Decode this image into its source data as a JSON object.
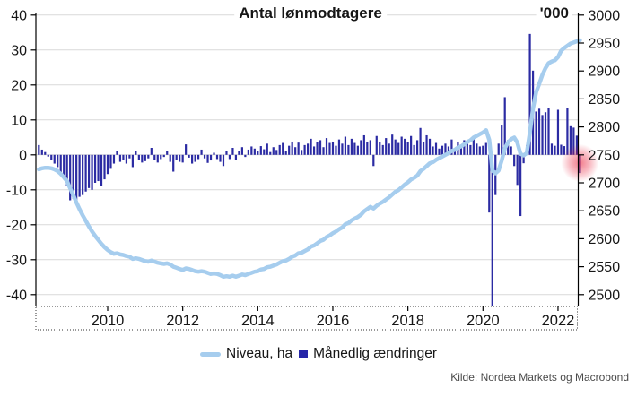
{
  "header": {
    "title": "Antal lønmodtagere",
    "unit_label": "'000"
  },
  "legend": {
    "items": [
      {
        "label": "Niveau, ha",
        "marker": "line-swatch",
        "color": "#a6cdee"
      },
      {
        "label": "Månedlig ændringer",
        "marker": "square-swatch",
        "color": "#2525a8"
      }
    ]
  },
  "source": {
    "label": "Kilde: Nordea Markets og Macrobond"
  },
  "colors": {
    "bar": "#2b2ba3",
    "line": "#a6cdee",
    "grid": "#d9d9d9",
    "axis": "#000000",
    "tick_text": "#161616",
    "highlight": "#e8112d",
    "background": "#ffffff"
  },
  "chart_data": {
    "type": "combo-bar-line",
    "title": "Antal lønmodtagere",
    "start_month": "2008-03",
    "months_per_point": 1,
    "left_axis": {
      "ticks": [
        40,
        30,
        20,
        10,
        0,
        -10,
        -20,
        -30,
        -40
      ],
      "range": [
        -40,
        40
      ],
      "grid": true
    },
    "right_axis": {
      "label": "'000",
      "ticks": [
        3000,
        2950,
        2900,
        2850,
        2800,
        2750,
        2700,
        2650,
        2600,
        2550,
        2500
      ],
      "range": [
        2500,
        3000
      ],
      "grid": false
    },
    "x_axis": {
      "tick_labels": [
        "2010",
        "2012",
        "2014",
        "2016",
        "2018",
        "2020",
        "2022"
      ],
      "tick_years": [
        2010,
        2012,
        2014,
        2016,
        2018,
        2020,
        2022
      ]
    },
    "series": [
      {
        "name": "Månedlig ændringer",
        "type": "bar",
        "axis": "left",
        "color": "#2b2ba3",
        "values": [
          2.8,
          1.5,
          0.8,
          -0.5,
          -1.5,
          -2.5,
          -3.5,
          -5,
          -7,
          -9,
          -13,
          -12.5,
          -13.5,
          -12,
          -11.5,
          -10.5,
          -9.5,
          -10,
          -8,
          -7.5,
          -9,
          -7,
          -5.5,
          -4,
          -2.5,
          1.2,
          -2,
          -1.5,
          -2.5,
          -1,
          -3.5,
          1,
          -1.5,
          -2.2,
          -1.8,
          -1,
          2,
          -1.5,
          -2.2,
          -1.2,
          -0.6,
          1.2,
          -2,
          -4.8,
          -1.5,
          -2,
          -2.2,
          3,
          -0.8,
          -2.5,
          -2,
          -1.2,
          1.5,
          -1,
          -2.3,
          -1.6,
          0.6,
          -1.2,
          -2,
          -3.2,
          1,
          -1.2,
          2,
          -1.5,
          1.2,
          2.2,
          -0.6,
          1.5,
          2.4,
          1.8,
          1.2,
          2.5,
          1.6,
          3.2,
          0.8,
          2.2,
          1.4,
          2.8,
          3.4,
          1.2,
          2.6,
          3.8,
          2.2,
          3.5,
          1.4,
          2.8,
          3.2,
          4.6,
          2.4,
          3.6,
          4.2,
          2.2,
          4.8,
          3.4,
          3.8,
          2.6,
          4.4,
          3.2,
          5.2,
          2.8,
          4.6,
          3.4,
          2.6,
          4.2,
          5.6,
          3.8,
          4.2,
          -3.2,
          5.4,
          3.6,
          2.8,
          4.8,
          3.2,
          5.8,
          4.4,
          3.4,
          5.2,
          4.6,
          3.6,
          5.4,
          2.8,
          4.2,
          7.7,
          3.8,
          5.6,
          4.6,
          2.4,
          3.4,
          1.8,
          2.6,
          3.2,
          2.4,
          4.4,
          1.6,
          3.8,
          2.2,
          4.2,
          3.6,
          2.8,
          4.6,
          3.2,
          2.4,
          2.6,
          3.4,
          -16.5,
          -55,
          -11.5,
          3.2,
          8.4,
          16.5,
          4.2,
          2.4,
          -3.2,
          -8.6,
          -17.5,
          -2.4,
          2.8,
          34.6,
          24.1,
          12.4,
          13.2,
          11.4,
          12.2,
          13.4,
          3.2,
          2.6,
          12.9,
          2.9,
          2.5,
          13.4,
          8.2,
          7.8,
          5.5,
          -5.2
        ]
      },
      {
        "name": "Niveau, ha",
        "type": "line",
        "axis": "right",
        "color": "#a6cdee",
        "values": [
          2724,
          2726,
          2727,
          2727,
          2726,
          2724,
          2721,
          2716,
          2710,
          2703,
          2690,
          2678,
          2665,
          2653,
          2642,
          2632,
          2622,
          2613,
          2605,
          2598,
          2591,
          2585,
          2580,
          2576,
          2573,
          2574,
          2572,
          2571,
          2569,
          2568,
          2564,
          2565,
          2564,
          2562,
          2560,
          2559,
          2561,
          2559,
          2557,
          2556,
          2555,
          2556,
          2554,
          2550,
          2548,
          2546,
          2544,
          2547,
          2546,
          2544,
          2542,
          2541,
          2542,
          2541,
          2539,
          2537,
          2538,
          2537,
          2535,
          2532,
          2533,
          2532,
          2534,
          2532,
          2534,
          2536,
          2535,
          2537,
          2539,
          2541,
          2542,
          2545,
          2546,
          2549,
          2550,
          2552,
          2554,
          2557,
          2560,
          2561,
          2564,
          2568,
          2570,
          2574,
          2575,
          2578,
          2581,
          2586,
          2588,
          2592,
          2596,
          2598,
          2603,
          2606,
          2610,
          2613,
          2617,
          2620,
          2626,
          2628,
          2633,
          2636,
          2639,
          2643,
          2649,
          2653,
          2657,
          2654,
          2659,
          2663,
          2666,
          2670,
          2674,
          2679,
          2684,
          2687,
          2692,
          2697,
          2701,
          2706,
          2709,
          2713,
          2721,
          2725,
          2730,
          2735,
          2737,
          2741,
          2744,
          2747,
          2750,
          2753,
          2757,
          2759,
          2763,
          2765,
          2769,
          2773,
          2776,
          2781,
          2784,
          2787,
          2790,
          2794,
          2777,
          2722,
          2717,
          2722,
          2740,
          2762,
          2772,
          2778,
          2781,
          2772,
          2752,
          2749,
          2753,
          2790,
          2833,
          2862,
          2877,
          2893,
          2905,
          2914,
          2917,
          2919,
          2925,
          2936,
          2941,
          2945,
          2949,
          2951,
          2953,
          2955
        ]
      }
    ],
    "annotation": {
      "type": "highlight-glow",
      "color": "#e8112d",
      "point_index": 173,
      "note": "last monthly change highlighted"
    }
  }
}
